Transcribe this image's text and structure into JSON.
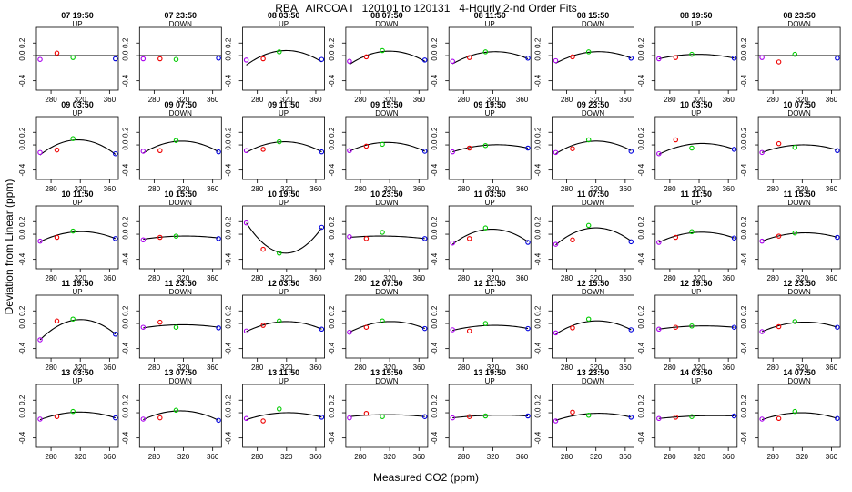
{
  "figure": {
    "title": "RBA   AIRCOA I   120101 to 120131   4-Hourly 2-nd Order Fits",
    "xlabel": "Measured CO2 (ppm)",
    "ylabel": "Deviation from Linear (ppm)"
  },
  "chart_data": {
    "type": "scatter",
    "title": "RBA   AIRCOA I   120101 to 120131   4-Hourly 2-nd Order Fits",
    "xlabel": "Measured CO2 (ppm)",
    "ylabel": "Deviation from Linear (ppm)",
    "xlim": [
      260,
      372
    ],
    "ylim": [
      -0.55,
      0.45
    ],
    "x_ticks": [
      280,
      320,
      360
    ],
    "y_ticks": [
      -0.4,
      0.0,
      0.2
    ],
    "y_tick_labels": [
      "-0.4",
      "0.0",
      "0.2"
    ],
    "standards_x": [
      265,
      288,
      310,
      368
    ],
    "standard_colors": [
      "#aa00ee",
      "#ee0000",
      "#00cc00",
      "#0000dd"
    ],
    "grid": false,
    "panels": [
      {
        "time": "07 19:50",
        "dir": "UP",
        "values": [
          -0.06,
          0.04,
          -0.03,
          -0.05
        ],
        "curve": [
          0,
          0,
          0
        ],
        "hline": true
      },
      {
        "time": "07 23:50",
        "dir": "DOWN",
        "values": [
          -0.05,
          -0.05,
          -0.06,
          -0.04
        ],
        "curve": [
          0,
          0,
          0
        ],
        "hline": true
      },
      {
        "time": "08 03:50",
        "dir": "UP",
        "values": [
          -0.07,
          -0.05,
          0.06,
          -0.06
        ],
        "curve": [
          -0.15,
          0.08,
          -0.1
        ]
      },
      {
        "time": "08 07:50",
        "dir": "DOWN",
        "values": [
          -0.09,
          -0.02,
          0.08,
          -0.07
        ],
        "curve": [
          -0.14,
          0.07,
          -0.09
        ]
      },
      {
        "time": "08 11:50",
        "dir": "UP",
        "values": [
          -0.09,
          -0.03,
          0.06,
          -0.04
        ],
        "curve": [
          -0.13,
          0.06,
          -0.05
        ]
      },
      {
        "time": "08 15:50",
        "dir": "DOWN",
        "values": [
          -0.08,
          -0.02,
          0.06,
          -0.04
        ],
        "curve": [
          -0.12,
          0.06,
          -0.04
        ]
      },
      {
        "time": "08 19:50",
        "dir": "UP",
        "values": [
          -0.05,
          -0.03,
          0.02,
          -0.04
        ],
        "curve": [
          -0.05,
          0.02,
          -0.04
        ]
      },
      {
        "time": "08 23:50",
        "dir": "DOWN",
        "values": [
          -0.03,
          -0.1,
          0.02,
          -0.04
        ],
        "curve": [
          0,
          0,
          0
        ],
        "hline": true
      },
      {
        "time": "09 03:50",
        "dir": "UP",
        "values": [
          -0.12,
          -0.08,
          0.1,
          -0.14
        ],
        "curve": [
          -0.16,
          0.08,
          -0.15
        ]
      },
      {
        "time": "09 07:50",
        "dir": "DOWN",
        "values": [
          -0.1,
          -0.09,
          0.07,
          -0.11
        ],
        "curve": [
          -0.13,
          0.06,
          -0.11
        ]
      },
      {
        "time": "09 11:50",
        "dir": "UP",
        "values": [
          -0.09,
          -0.07,
          0.05,
          -0.11
        ],
        "curve": [
          -0.12,
          0.05,
          -0.11
        ]
      },
      {
        "time": "09 15:50",
        "dir": "DOWN",
        "values": [
          -0.09,
          -0.02,
          0.01,
          -0.1
        ],
        "curve": [
          -0.1,
          0.04,
          -0.1
        ]
      },
      {
        "time": "09 19:50",
        "dir": "UP",
        "values": [
          -0.11,
          -0.05,
          -0.01,
          -0.05
        ],
        "curve": [
          -0.11,
          0.0,
          -0.05
        ]
      },
      {
        "time": "09 23:50",
        "dir": "DOWN",
        "values": [
          -0.12,
          -0.06,
          0.08,
          -0.1
        ],
        "curve": [
          -0.14,
          0.06,
          -0.09
        ]
      },
      {
        "time": "10 03:50",
        "dir": "UP",
        "values": [
          -0.14,
          0.08,
          -0.05,
          -0.07
        ],
        "curve": [
          -0.15,
          0.02,
          -0.07
        ]
      },
      {
        "time": "10 07:50",
        "dir": "DOWN",
        "values": [
          -0.12,
          0.02,
          -0.04,
          -0.09
        ],
        "curve": [
          -0.12,
          0.0,
          -0.08
        ]
      },
      {
        "time": "10 11:50",
        "dir": "UP",
        "values": [
          -0.11,
          -0.05,
          0.05,
          -0.07
        ],
        "curve": [
          -0.12,
          0.04,
          -0.07
        ]
      },
      {
        "time": "10 15:50",
        "dir": "DOWN",
        "values": [
          -0.09,
          -0.05,
          -0.03,
          -0.07
        ],
        "curve": [
          -0.08,
          -0.03,
          -0.06
        ]
      },
      {
        "time": "10 19:50",
        "dir": "UP",
        "values": [
          0.18,
          -0.24,
          -0.3,
          0.11
        ],
        "curve": [
          0.18,
          -0.3,
          0.1
        ]
      },
      {
        "time": "10 23:50",
        "dir": "DOWN",
        "values": [
          -0.04,
          -0.07,
          0.03,
          -0.07
        ],
        "curve": [
          -0.05,
          -0.03,
          -0.07
        ]
      },
      {
        "time": "11 03:50",
        "dir": "UP",
        "values": [
          -0.14,
          -0.07,
          0.1,
          -0.13
        ],
        "curve": [
          -0.16,
          0.08,
          -0.12
        ]
      },
      {
        "time": "11 07:50",
        "dir": "DOWN",
        "values": [
          -0.16,
          -0.09,
          0.14,
          -0.12
        ],
        "curve": [
          -0.17,
          0.1,
          -0.11
        ]
      },
      {
        "time": "11 11:50",
        "dir": "UP",
        "values": [
          -0.13,
          -0.05,
          0.04,
          -0.06
        ],
        "curve": [
          -0.13,
          0.03,
          -0.06
        ]
      },
      {
        "time": "11 15:50",
        "dir": "DOWN",
        "values": [
          -0.11,
          -0.03,
          0.02,
          -0.05
        ],
        "curve": [
          -0.11,
          0.02,
          -0.05
        ]
      },
      {
        "time": "11 19:50",
        "dir": "UP",
        "values": [
          -0.26,
          0.04,
          0.07,
          -0.17
        ],
        "curve": [
          -0.26,
          0.06,
          -0.17
        ]
      },
      {
        "time": "11 23:50",
        "dir": "DOWN",
        "values": [
          -0.06,
          0.02,
          -0.06,
          -0.07
        ],
        "curve": [
          -0.07,
          -0.02,
          -0.06
        ]
      },
      {
        "time": "12 03:50",
        "dir": "UP",
        "values": [
          -0.12,
          -0.03,
          0.04,
          -0.09
        ],
        "curve": [
          -0.13,
          0.03,
          -0.09
        ]
      },
      {
        "time": "12 07:50",
        "dir": "DOWN",
        "values": [
          -0.14,
          -0.06,
          0.04,
          -0.08
        ],
        "curve": [
          -0.14,
          0.03,
          -0.08
        ]
      },
      {
        "time": "12 11:50",
        "dir": "UP",
        "values": [
          -0.1,
          -0.12,
          0.0,
          -0.08
        ],
        "curve": [
          -0.11,
          -0.03,
          -0.08
        ]
      },
      {
        "time": "12 15:50",
        "dir": "DOWN",
        "values": [
          -0.15,
          -0.07,
          0.07,
          -0.1
        ],
        "curve": [
          -0.17,
          0.04,
          -0.1
        ]
      },
      {
        "time": "12 19:50",
        "dir": "UP",
        "values": [
          -0.09,
          -0.06,
          -0.04,
          -0.06
        ],
        "curve": [
          -0.09,
          -0.04,
          -0.06
        ]
      },
      {
        "time": "12 23:50",
        "dir": "DOWN",
        "values": [
          -0.13,
          -0.05,
          0.03,
          -0.06
        ],
        "curve": [
          -0.13,
          0.02,
          -0.06
        ]
      },
      {
        "time": "13 03:50",
        "dir": "UP",
        "values": [
          -0.1,
          -0.06,
          0.02,
          -0.08
        ],
        "curve": [
          -0.11,
          0.01,
          -0.08
        ]
      },
      {
        "time": "13 07:50",
        "dir": "DOWN",
        "values": [
          -0.1,
          -0.08,
          0.04,
          -0.12
        ],
        "curve": [
          -0.11,
          0.03,
          -0.12
        ]
      },
      {
        "time": "13 11:50",
        "dir": "UP",
        "values": [
          -0.09,
          -0.13,
          0.06,
          -0.07
        ],
        "curve": [
          -0.11,
          0.0,
          -0.07
        ]
      },
      {
        "time": "13 15:50",
        "dir": "DOWN",
        "values": [
          -0.08,
          -0.01,
          -0.06,
          -0.06
        ],
        "curve": [
          -0.06,
          -0.03,
          -0.06
        ]
      },
      {
        "time": "13 19:50",
        "dir": "UP",
        "values": [
          -0.08,
          -0.06,
          -0.05,
          -0.05
        ],
        "curve": [
          -0.08,
          -0.04,
          -0.05
        ]
      },
      {
        "time": "13 23:50",
        "dir": "DOWN",
        "values": [
          -0.13,
          0.01,
          -0.04,
          -0.07
        ],
        "curve": [
          -0.12,
          -0.01,
          -0.07
        ]
      },
      {
        "time": "14 03:50",
        "dir": "UP",
        "values": [
          -0.09,
          -0.07,
          -0.06,
          -0.05
        ],
        "curve": [
          -0.09,
          -0.05,
          -0.05
        ]
      },
      {
        "time": "14 07:50",
        "dir": "DOWN",
        "values": [
          -0.1,
          -0.09,
          0.02,
          -0.09
        ],
        "curve": [
          -0.11,
          0.0,
          -0.09
        ]
      }
    ]
  }
}
